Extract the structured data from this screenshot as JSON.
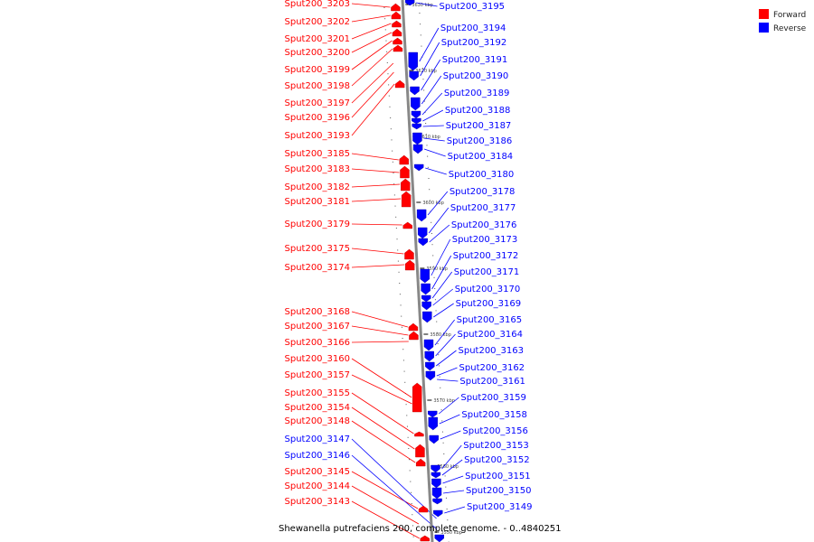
{
  "caption": "Shewanella putrefaciens 200, complete genome. - 0..4840251",
  "legend": [
    {
      "label": "Forward",
      "color": "#ff0000"
    },
    {
      "label": "Reverse",
      "color": "#0000ff"
    }
  ],
  "colors": {
    "forward": "#ff0000",
    "reverse": "#0000ff",
    "backbone": "#888888"
  },
  "ticks": [
    "3630 kbp",
    "3620 kbp",
    "3610 kbp",
    "3600 kbp",
    "3590 kbp",
    "3580 kbp",
    "3570 kbp",
    "3560 kbp",
    "3550 kbp"
  ],
  "genes_forward": [
    "Sput200_3203",
    "Sput200_3202",
    "Sput200_3201",
    "Sput200_3200",
    "Sput200_3199",
    "Sput200_3198",
    "Sput200_3197",
    "Sput200_3196",
    "Sput200_3193",
    "Sput200_3185",
    "Sput200_3183",
    "Sput200_3182",
    "Sput200_3181",
    "Sput200_3179",
    "Sput200_3175",
    "Sput200_3174",
    "Sput200_3168",
    "Sput200_3167",
    "Sput200_3166",
    "Sput200_3160",
    "Sput200_3157",
    "Sput200_3155",
    "Sput200_3154",
    "Sput200_3148",
    "Sput200_3145",
    "Sput200_3144",
    "Sput200_3143"
  ],
  "genes_reverse_left": [
    "Sput200_3147",
    "Sput200_3146"
  ],
  "genes_reverse": [
    "Sput200_3195",
    "Sput200_3194",
    "Sput200_3192",
    "Sput200_3191",
    "Sput200_3190",
    "Sput200_3189",
    "Sput200_3188",
    "Sput200_3187",
    "Sput200_3186",
    "Sput200_3184",
    "Sput200_3180",
    "Sput200_3178",
    "Sput200_3177",
    "Sput200_3176",
    "Sput200_3173",
    "Sput200_3172",
    "Sput200_3171",
    "Sput200_3170",
    "Sput200_3169",
    "Sput200_3165",
    "Sput200_3164",
    "Sput200_3163",
    "Sput200_3162",
    "Sput200_3161",
    "Sput200_3159",
    "Sput200_3158",
    "Sput200_3156",
    "Sput200_3153",
    "Sput200_3152",
    "Sput200_3151",
    "Sput200_3150",
    "Sput200_3149"
  ]
}
